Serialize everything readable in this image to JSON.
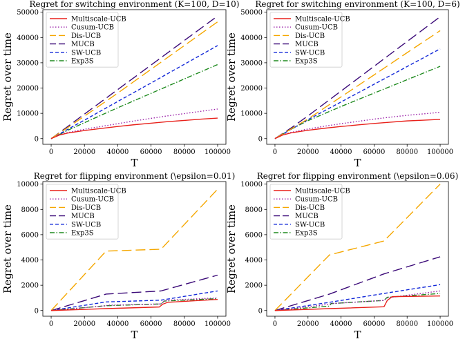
{
  "series_styles": [
    {
      "name": "Multiscale-UCB",
      "color": "#e8211b",
      "dash": "none"
    },
    {
      "name": "Cusum-UCB",
      "color": "#9a1fa8",
      "dash": "dotted"
    },
    {
      "name": "Dis-UCB",
      "color": "#f5a700",
      "dash": "long-dash"
    },
    {
      "name": "MUCB",
      "color": "#3b0a78",
      "dash": "long-dash"
    },
    {
      "name": "SW-UCB",
      "color": "#1228d8",
      "dash": "dashed"
    },
    {
      "name": "Exp3S",
      "color": "#1e8a1e",
      "dash": "dash-dot"
    }
  ],
  "chart_data": [
    {
      "type": "line",
      "title": "Regret for switching environment (K=100, D=10)",
      "xlabel": "T",
      "ylabel": "Regret over time",
      "xlim": [
        0,
        100000
      ],
      "ylim": [
        0,
        50000
      ],
      "xticks": [
        0,
        20000,
        40000,
        60000,
        80000,
        100000
      ],
      "yticks": [
        0,
        10000,
        20000,
        30000,
        40000,
        50000
      ],
      "legend_position": "upper-left",
      "series": [
        {
          "name": "Multiscale-UCB",
          "x": [
            0,
            5000,
            10000,
            20000,
            30000,
            40000,
            50000,
            60000,
            70000,
            80000,
            90000,
            100000
          ],
          "y": [
            0,
            1400,
            2200,
            3200,
            4000,
            4800,
            5500,
            6100,
            6700,
            7200,
            7700,
            8100
          ]
        },
        {
          "name": "Cusum-UCB",
          "x": [
            0,
            5000,
            10000,
            20000,
            30000,
            40000,
            50000,
            60000,
            70000,
            80000,
            90000,
            100000
          ],
          "y": [
            0,
            1600,
            2400,
            3700,
            4800,
            5900,
            7000,
            8000,
            9000,
            9900,
            10800,
            11700
          ]
        },
        {
          "name": "Dis-UCB",
          "x": [
            0,
            10000,
            20000,
            40000,
            60000,
            80000,
            100000
          ],
          "y": [
            0,
            4400,
            8900,
            18000,
            27400,
            36800,
            46200
          ]
        },
        {
          "name": "MUCB",
          "x": [
            0,
            10000,
            20000,
            40000,
            60000,
            80000,
            100000
          ],
          "y": [
            0,
            4800,
            9700,
            19400,
            29100,
            38800,
            48500
          ]
        },
        {
          "name": "SW-UCB",
          "x": [
            0,
            10000,
            20000,
            40000,
            60000,
            80000,
            100000
          ],
          "y": [
            0,
            3700,
            7300,
            14700,
            22000,
            29400,
            36800
          ]
        },
        {
          "name": "Exp3S",
          "x": [
            0,
            10000,
            20000,
            40000,
            60000,
            80000,
            100000
          ],
          "y": [
            0,
            3300,
            6300,
            12200,
            17900,
            23600,
            29300
          ]
        }
      ]
    },
    {
      "type": "line",
      "title": "Regret for switching environment (K=100, D=6)",
      "xlabel": "T",
      "ylabel": "Regret over time",
      "xlim": [
        0,
        100000
      ],
      "ylim": [
        0,
        50000
      ],
      "xticks": [
        0,
        20000,
        40000,
        60000,
        80000,
        100000
      ],
      "yticks": [
        0,
        10000,
        20000,
        30000,
        40000,
        50000
      ],
      "legend_position": "upper-left",
      "series": [
        {
          "name": "Multiscale-UCB",
          "x": [
            0,
            5000,
            10000,
            20000,
            30000,
            40000,
            50000,
            60000,
            70000,
            80000,
            90000,
            100000
          ],
          "y": [
            0,
            1500,
            2300,
            3300,
            4100,
            4800,
            5400,
            6000,
            6500,
            7000,
            7300,
            7600
          ]
        },
        {
          "name": "Cusum-UCB",
          "x": [
            0,
            5000,
            10000,
            20000,
            30000,
            40000,
            50000,
            60000,
            70000,
            80000,
            90000,
            100000
          ],
          "y": [
            0,
            1600,
            2500,
            3800,
            4900,
            5900,
            6800,
            7700,
            8500,
            9200,
            9800,
            10400
          ]
        },
        {
          "name": "Dis-UCB",
          "x": [
            0,
            10000,
            20000,
            40000,
            60000,
            80000,
            100000
          ],
          "y": [
            0,
            3900,
            7800,
            16500,
            25200,
            34000,
            42700
          ]
        },
        {
          "name": "MUCB",
          "x": [
            0,
            10000,
            20000,
            40000,
            60000,
            80000,
            100000
          ],
          "y": [
            0,
            4300,
            9000,
            18800,
            28600,
            38400,
            48200
          ]
        },
        {
          "name": "SW-UCB",
          "x": [
            0,
            10000,
            20000,
            40000,
            60000,
            80000,
            100000
          ],
          "y": [
            0,
            3800,
            7500,
            14500,
            21500,
            28500,
            35500
          ]
        },
        {
          "name": "Exp3S",
          "x": [
            0,
            10000,
            20000,
            40000,
            60000,
            80000,
            100000
          ],
          "y": [
            0,
            3800,
            7100,
            12700,
            18000,
            23300,
            28600
          ]
        }
      ]
    },
    {
      "type": "line",
      "title": "Regret for flipping environment (\\epsilon=0.01)",
      "xlabel": "T",
      "ylabel": "Regret over time",
      "xlim": [
        0,
        100000
      ],
      "ylim": [
        0,
        10000
      ],
      "xticks": [
        0,
        20000,
        40000,
        60000,
        80000,
        100000
      ],
      "yticks": [
        0,
        2000,
        4000,
        6000,
        8000,
        10000
      ],
      "legend_position": "upper-left",
      "series": [
        {
          "name": "Multiscale-UCB",
          "x": [
            0,
            33000,
            65000,
            67000,
            70000,
            100000
          ],
          "y": [
            0,
            150,
            280,
            500,
            650,
            880
          ]
        },
        {
          "name": "Cusum-UCB",
          "x": [
            0,
            33000,
            34000,
            66000,
            68000,
            70000,
            100000
          ],
          "y": [
            0,
            380,
            420,
            520,
            750,
            820,
            1000
          ]
        },
        {
          "name": "Dis-UCB",
          "x": [
            0,
            33000,
            66000,
            100000
          ],
          "y": [
            0,
            4700,
            4850,
            9600
          ]
        },
        {
          "name": "MUCB",
          "x": [
            0,
            33000,
            66000,
            100000
          ],
          "y": [
            0,
            1300,
            1550,
            2800
          ]
        },
        {
          "name": "SW-UCB",
          "x": [
            0,
            33000,
            66000,
            100000
          ],
          "y": [
            0,
            680,
            820,
            1550
          ]
        },
        {
          "name": "Exp3S",
          "x": [
            0,
            33000,
            66000,
            68000,
            100000
          ],
          "y": [
            0,
            380,
            520,
            750,
            940
          ]
        }
      ]
    },
    {
      "type": "line",
      "title": "Regret for flipping environment (\\epsilon=0.06)",
      "xlabel": "T",
      "ylabel": "Regret over time",
      "xlim": [
        0,
        100000
      ],
      "ylim": [
        0,
        10000
      ],
      "xticks": [
        0,
        20000,
        40000,
        60000,
        80000,
        100000
      ],
      "yticks": [
        0,
        2000,
        4000,
        6000,
        8000,
        10000
      ],
      "legend_position": "upper-left",
      "series": [
        {
          "name": "Multiscale-UCB",
          "x": [
            0,
            33000,
            66000,
            68000,
            71000,
            100000
          ],
          "y": [
            0,
            150,
            300,
            800,
            1100,
            1150
          ]
        },
        {
          "name": "Cusum-UCB",
          "x": [
            0,
            33000,
            34000,
            66000,
            68000,
            100000
          ],
          "y": [
            0,
            500,
            550,
            800,
            1000,
            1550
          ]
        },
        {
          "name": "Dis-UCB",
          "x": [
            0,
            33000,
            66000,
            100000
          ],
          "y": [
            0,
            4400,
            5500,
            10000
          ]
        },
        {
          "name": "MUCB",
          "x": [
            0,
            33000,
            66000,
            100000
          ],
          "y": [
            0,
            1300,
            2900,
            4250
          ]
        },
        {
          "name": "SW-UCB",
          "x": [
            0,
            33000,
            66000,
            100000
          ],
          "y": [
            0,
            650,
            1350,
            2050
          ]
        },
        {
          "name": "Exp3S",
          "x": [
            0,
            33000,
            34000,
            66000,
            68000,
            100000
          ],
          "y": [
            0,
            350,
            550,
            800,
            1050,
            1350
          ]
        }
      ]
    }
  ]
}
